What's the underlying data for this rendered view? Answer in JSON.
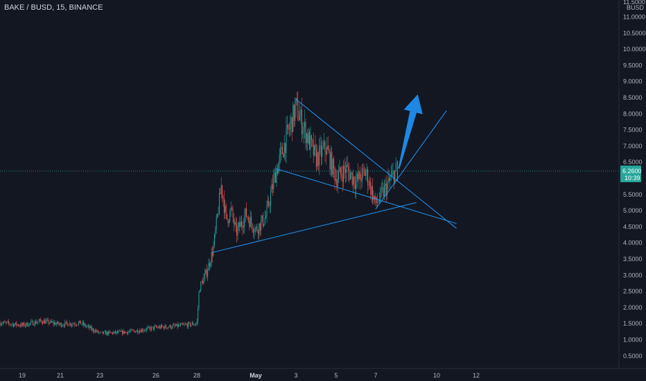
{
  "header": {
    "symbol_title": "BAKE / BUSD, 15, BINANCE"
  },
  "price_axis": {
    "currency": "BUSD",
    "top_partial_label": "11.5000",
    "labels": [
      "11.0000",
      "10.5000",
      "10.0000",
      "9.5000",
      "9.0000",
      "8.5000",
      "8.0000",
      "7.5000",
      "7.0000",
      "6.5000",
      "5.5000",
      "5.0000",
      "4.5000",
      "4.0000",
      "3.5000",
      "3.0000",
      "2.5000",
      "2.0000",
      "1.5000",
      "1.0000",
      "0.5000"
    ],
    "current_price": "6.2600",
    "countdown": "10:39"
  },
  "time_axis": {
    "labels": [
      "19",
      "21",
      "23",
      "26",
      "28",
      "May",
      "3",
      "5",
      "7",
      "10",
      "12"
    ]
  },
  "colors": {
    "background": "#131722",
    "up": "#26a69a",
    "down": "#ef5350",
    "trendline": "#2196f3",
    "arrow": "#1e88e5",
    "price_badge": "#26a69a",
    "axis_text": "#b2b5be"
  },
  "chart_data": {
    "type": "candlestick",
    "symbol": "BAKE / BUSD",
    "interval": "15",
    "exchange": "BINANCE",
    "ylim": [
      0.3,
      11.6
    ],
    "current_price": 6.26,
    "path": [
      {
        "x": "Apr 18",
        "price": 1.6
      },
      {
        "x": "Apr 19",
        "price": 1.45
      },
      {
        "x": "Apr 20",
        "price": 1.58
      },
      {
        "x": "Apr 21",
        "price": 1.48
      },
      {
        "x": "Apr 22",
        "price": 1.52
      },
      {
        "x": "Apr 23",
        "price": 1.2
      },
      {
        "x": "Apr 24",
        "price": 1.22
      },
      {
        "x": "Apr 25",
        "price": 1.28
      },
      {
        "x": "Apr 26",
        "price": 1.38
      },
      {
        "x": "Apr 27",
        "price": 1.42
      },
      {
        "x": "Apr 28 00:00",
        "price": 1.5
      },
      {
        "x": "Apr 28 03:00",
        "price": 2.6
      },
      {
        "x": "Apr 28 12:00",
        "price": 3.1
      },
      {
        "x": "Apr 28 20:00",
        "price": 3.8
      },
      {
        "x": "Apr 29 00:00",
        "price": 4.6
      },
      {
        "x": "Apr 29 06:00",
        "price": 5.8
      },
      {
        "x": "Apr 29 12:00",
        "price": 4.7
      },
      {
        "x": "Apr 29 18:00",
        "price": 5.0
      },
      {
        "x": "Apr 30",
        "price": 4.3
      },
      {
        "x": "Apr 30 12:00",
        "price": 4.9
      },
      {
        "x": "May 1",
        "price": 4.4
      },
      {
        "x": "May 1 12:00",
        "price": 4.8
      },
      {
        "x": "May 2",
        "price": 6.2
      },
      {
        "x": "May 2 12:00",
        "price": 7.2
      },
      {
        "x": "May 3",
        "price": 8.2
      },
      {
        "x": "May 3 12:00",
        "price": 7.4
      },
      {
        "x": "May 4",
        "price": 6.6
      },
      {
        "x": "May 4 12:00",
        "price": 6.95
      },
      {
        "x": "May 5",
        "price": 6.0
      },
      {
        "x": "May 5 12:00",
        "price": 6.3
      },
      {
        "x": "May 6",
        "price": 5.9
      },
      {
        "x": "May 6 12:00",
        "price": 6.2
      },
      {
        "x": "May 7",
        "price": 5.2
      },
      {
        "x": "May 7 12:00",
        "price": 5.7
      },
      {
        "x": "May 8",
        "price": 6.26
      }
    ],
    "trendlines": [
      {
        "name": "descending resistance",
        "from": {
          "x": "May 3",
          "price": 8.45
        },
        "to": {
          "x": "May 11",
          "price": 4.45
        }
      },
      {
        "name": "descending support",
        "from": {
          "x": "May 2",
          "price": 6.3
        },
        "to": {
          "x": "May 11",
          "price": 4.6
        }
      },
      {
        "name": "ascending support",
        "from": {
          "x": "Apr 28 18:00",
          "price": 3.7
        },
        "to": {
          "x": "May 9",
          "price": 5.25
        }
      },
      {
        "name": "breakout channel line",
        "from": {
          "x": "May 7",
          "price": 5.05
        },
        "to": {
          "x": "May 10 12:00",
          "price": 8.1
        }
      }
    ],
    "annotations": [
      {
        "type": "arrow",
        "direction": "up",
        "from": {
          "x": "May 8",
          "price": 6.3
        },
        "to": {
          "x": "May 9",
          "price": 8.6
        }
      }
    ],
    "grid": false,
    "legend": "none"
  }
}
